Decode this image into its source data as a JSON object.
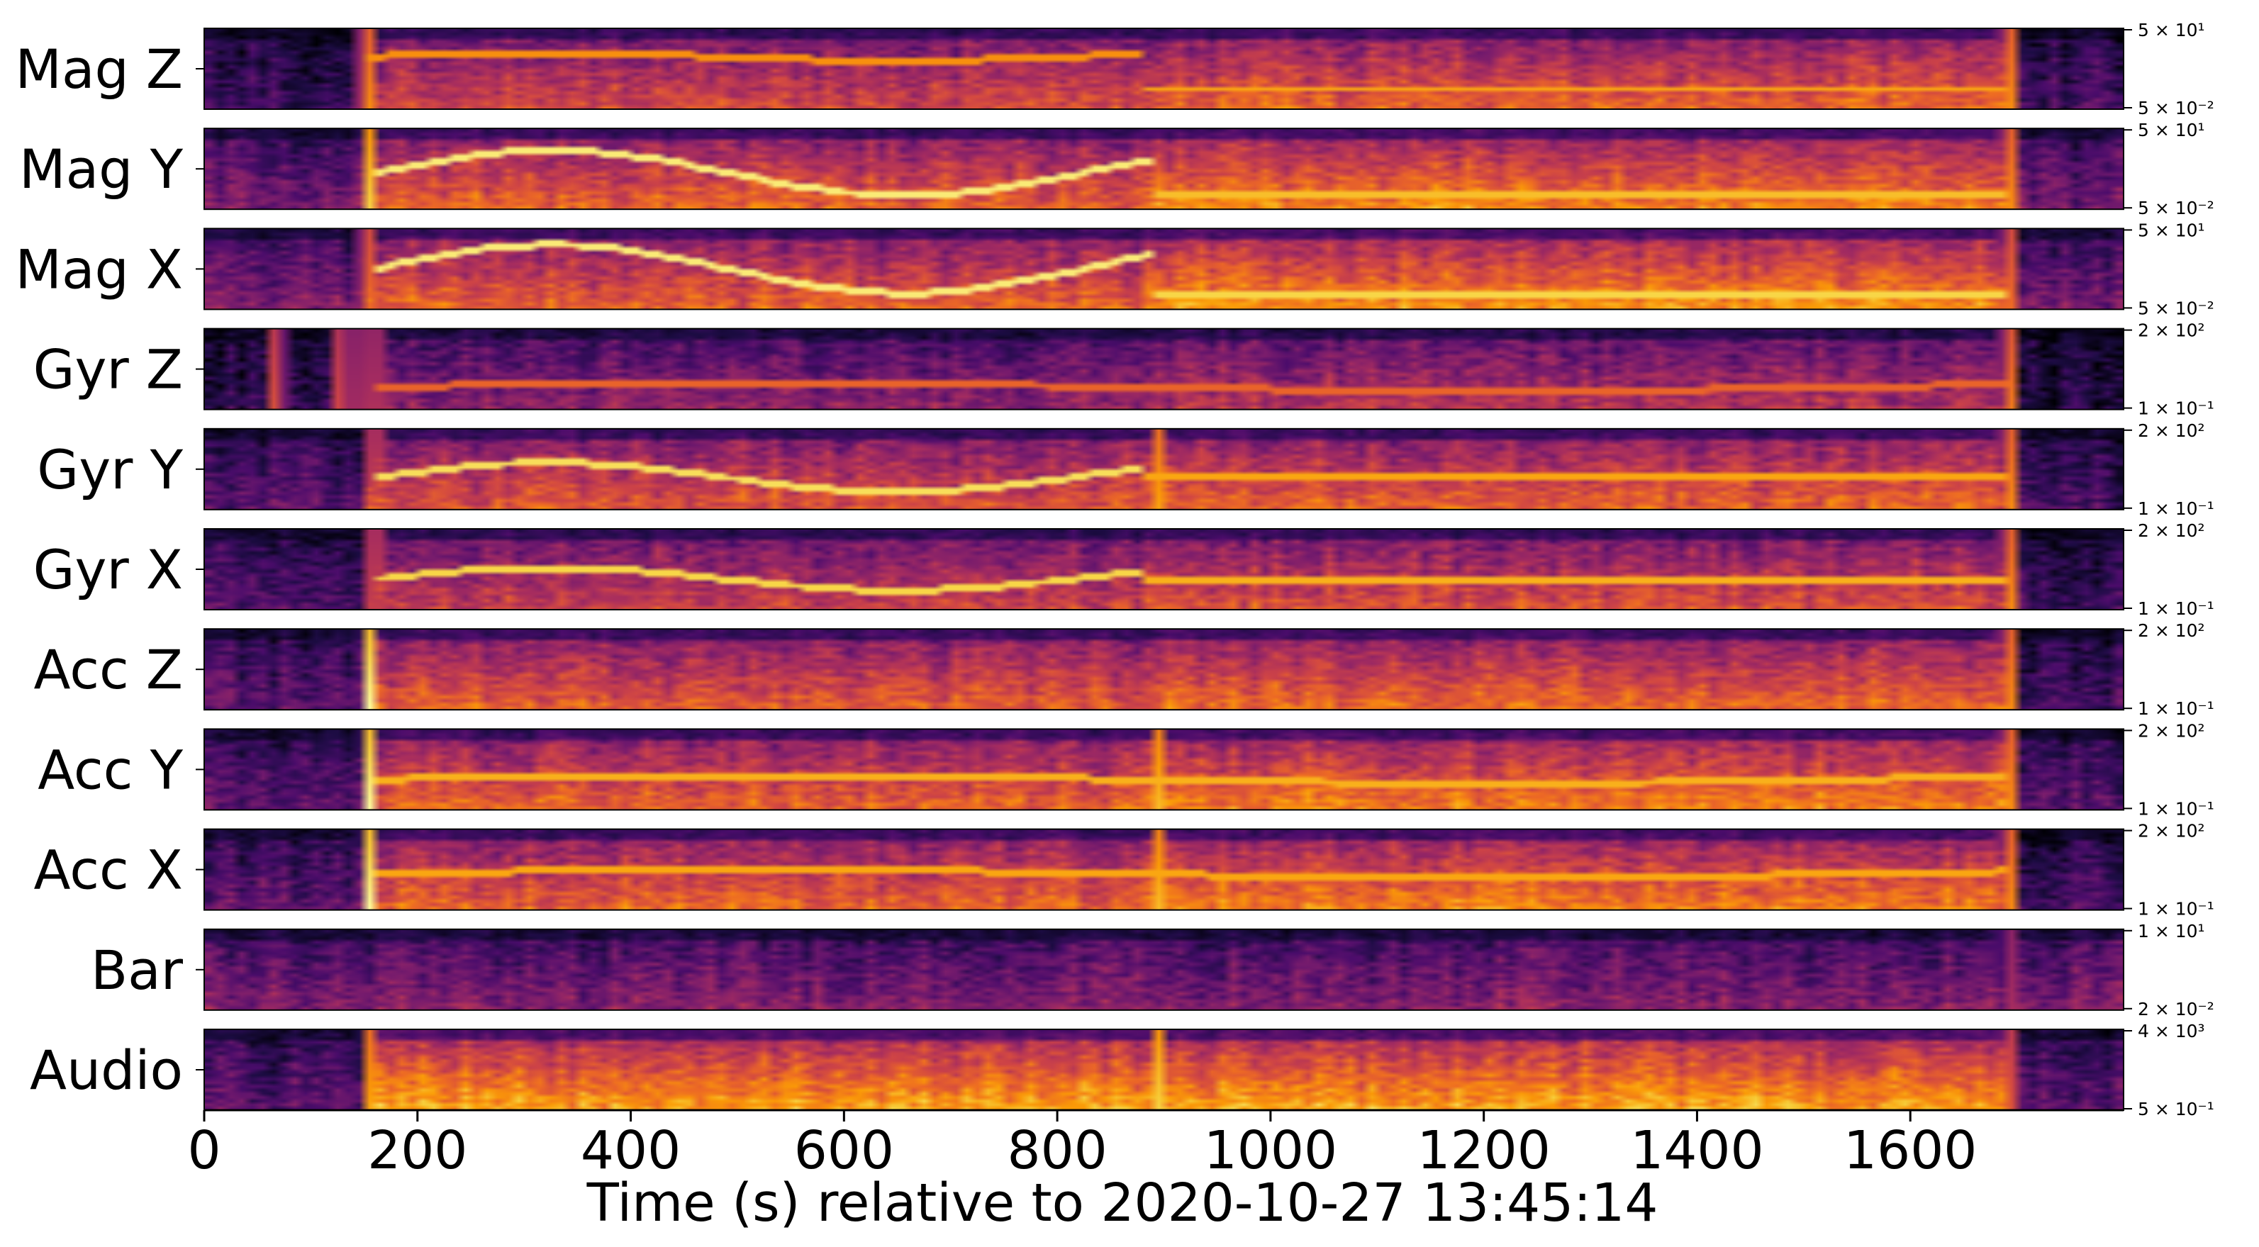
{
  "chart_data": {
    "type": "heatmap",
    "title": "",
    "xlabel": "Time (s) relative to 2020-10-27 13:45:14",
    "xlim": [
      0,
      1800
    ],
    "xticks": [
      0,
      200,
      400,
      600,
      800,
      1000,
      1200,
      1400,
      1600
    ],
    "xtick_labels": [
      "0",
      "200",
      "400",
      "600",
      "800",
      "1000",
      "1200",
      "1400",
      "1600"
    ],
    "colormap": [
      "#000004",
      "#1c0c43",
      "#4a0c6b",
      "#781c6d",
      "#a52c60",
      "#cf4446",
      "#ed6925",
      "#fb9b06",
      "#f7d13d",
      "#fcffa4"
    ],
    "yscale": "log",
    "panels": [
      {
        "label": "Mag Z",
        "ytick_top": "5 × 10¹",
        "ytick_bottom": "5 × 10⁻²",
        "ylim": [
          0.05,
          50
        ],
        "events": [
          {
            "t": 152,
            "strength": 1.0
          },
          {
            "t": 1692,
            "strength": 1.0
          }
        ],
        "bands": [
          {
            "t": [
              0,
              150
            ],
            "level": 0.18
          },
          {
            "t": [
              150,
              880
            ],
            "level": 0.52
          },
          {
            "t": [
              880,
              1695
            ],
            "level": 0.6
          },
          {
            "t": [
              1695,
              1800
            ],
            "level": 0.2
          }
        ],
        "lines": [
          {
            "y": 0.35,
            "amp": 0.05,
            "t": [
              150,
              880
            ],
            "level": 0.75
          },
          {
            "y": 0.75,
            "amp": 0.0,
            "t": [
              880,
              1690
            ],
            "level": 0.8
          }
        ]
      },
      {
        "label": "Mag Y",
        "ytick_top": "5 × 10¹",
        "ytick_bottom": "5 × 10⁻²",
        "ylim": [
          0.05,
          50
        ],
        "events": [
          {
            "t": 155,
            "strength": 0.9
          },
          {
            "t": 1692,
            "strength": 1.0
          }
        ],
        "bands": [
          {
            "t": [
              0,
              150
            ],
            "level": 0.32
          },
          {
            "t": [
              150,
              880
            ],
            "level": 0.6
          },
          {
            "t": [
              880,
              1695
            ],
            "level": 0.68
          },
          {
            "t": [
              1695,
              1800
            ],
            "level": 0.3
          }
        ],
        "lines": [
          {
            "y": 0.55,
            "amp": 0.28,
            "t": [
              160,
              890
            ],
            "level": 0.95
          },
          {
            "y": 0.8,
            "amp": 0.0,
            "t": [
              890,
              1690
            ],
            "level": 0.85
          }
        ]
      },
      {
        "label": "Mag X",
        "ytick_top": "5 × 10¹",
        "ytick_bottom": "5 × 10⁻²",
        "ylim": [
          0.05,
          50
        ],
        "events": [
          {
            "t": 152,
            "strength": 0.9
          },
          {
            "t": 1692,
            "strength": 0.9
          }
        ],
        "bands": [
          {
            "t": [
              0,
              150
            ],
            "level": 0.32
          },
          {
            "t": [
              150,
              880
            ],
            "level": 0.6
          },
          {
            "t": [
              880,
              1695
            ],
            "level": 0.7
          },
          {
            "t": [
              1695,
              1800
            ],
            "level": 0.3
          }
        ],
        "lines": [
          {
            "y": 0.5,
            "amp": 0.3,
            "t": [
              160,
              890
            ],
            "level": 0.95
          },
          {
            "y": 0.82,
            "amp": 0.0,
            "t": [
              890,
              1690
            ],
            "level": 0.9
          }
        ]
      },
      {
        "label": "Gyr Z",
        "ytick_top": "2 × 10²",
        "ytick_bottom": "1 × 10⁻¹",
        "ylim": [
          0.1,
          200
        ],
        "events": [
          {
            "t": 68,
            "strength": 0.8
          },
          {
            "t": 128,
            "strength": 0.75
          },
          {
            "t": 140,
            "strength": 0.75
          },
          {
            "t": 160,
            "strength": 0.8
          },
          {
            "t": 1692,
            "strength": 0.95
          }
        ],
        "bands": [
          {
            "t": [
              0,
              150
            ],
            "level": 0.14
          },
          {
            "t": [
              150,
              880
            ],
            "level": 0.36
          },
          {
            "t": [
              880,
              1695
            ],
            "level": 0.44
          },
          {
            "t": [
              1695,
              1800
            ],
            "level": 0.1
          }
        ],
        "lines": [
          {
            "y": 0.72,
            "amp": 0.05,
            "t": [
              160,
              1690
            ],
            "level": 0.65
          }
        ]
      },
      {
        "label": "Gyr Y",
        "ytick_top": "2 × 10²",
        "ytick_bottom": "1 × 10⁻¹",
        "ylim": [
          0.1,
          200
        ],
        "events": [
          {
            "t": 160,
            "strength": 0.9
          },
          {
            "t": 895,
            "strength": 0.8
          },
          {
            "t": 1692,
            "strength": 1.0
          }
        ],
        "bands": [
          {
            "t": [
              0,
              150
            ],
            "level": 0.25
          },
          {
            "t": [
              150,
              880
            ],
            "level": 0.56
          },
          {
            "t": [
              880,
              1695
            ],
            "level": 0.6
          },
          {
            "t": [
              1695,
              1800
            ],
            "level": 0.2
          }
        ],
        "lines": [
          {
            "y": 0.6,
            "amp": 0.18,
            "t": [
              160,
              880
            ],
            "level": 0.92
          },
          {
            "y": 0.6,
            "amp": 0.0,
            "t": [
              880,
              1690
            ],
            "level": 0.8
          }
        ]
      },
      {
        "label": "Gyr X",
        "ytick_top": "2 × 10²",
        "ytick_bottom": "1 × 10⁻¹",
        "ylim": [
          0.1,
          200
        ],
        "events": [
          {
            "t": 160,
            "strength": 0.9
          },
          {
            "t": 1692,
            "strength": 1.0
          }
        ],
        "bands": [
          {
            "t": [
              0,
              150
            ],
            "level": 0.22
          },
          {
            "t": [
              150,
              880
            ],
            "level": 0.5
          },
          {
            "t": [
              880,
              1695
            ],
            "level": 0.55
          },
          {
            "t": [
              1695,
              1800
            ],
            "level": 0.18
          }
        ],
        "lines": [
          {
            "y": 0.62,
            "amp": 0.14,
            "t": [
              160,
              880
            ],
            "level": 0.9
          },
          {
            "y": 0.64,
            "amp": 0.0,
            "t": [
              880,
              1690
            ],
            "level": 0.82
          }
        ]
      },
      {
        "label": "Acc Z",
        "ytick_top": "2 × 10²",
        "ytick_bottom": "1 × 10⁻¹",
        "ylim": [
          0.1,
          200
        ],
        "events": [
          {
            "t": 155,
            "strength": 1.0
          },
          {
            "t": 1692,
            "strength": 1.0
          }
        ],
        "bands": [
          {
            "t": [
              0,
              150
            ],
            "level": 0.24
          },
          {
            "t": [
              150,
              880
            ],
            "level": 0.58
          },
          {
            "t": [
              880,
              1695
            ],
            "level": 0.62
          },
          {
            "t": [
              1695,
              1800
            ],
            "level": 0.2
          }
        ],
        "lines": []
      },
      {
        "label": "Acc Y",
        "ytick_top": "2 × 10²",
        "ytick_bottom": "1 × 10⁻¹",
        "ylim": [
          0.1,
          200
        ],
        "events": [
          {
            "t": 155,
            "strength": 1.0
          },
          {
            "t": 895,
            "strength": 0.85
          },
          {
            "t": 1692,
            "strength": 1.0
          }
        ],
        "bands": [
          {
            "t": [
              0,
              150
            ],
            "level": 0.26
          },
          {
            "t": [
              150,
              880
            ],
            "level": 0.6
          },
          {
            "t": [
              880,
              1695
            ],
            "level": 0.66
          },
          {
            "t": [
              1695,
              1800
            ],
            "level": 0.22
          }
        ],
        "lines": [
          {
            "y": 0.62,
            "amp": 0.05,
            "t": [
              160,
              1690
            ],
            "level": 0.82
          }
        ]
      },
      {
        "label": "Acc X",
        "ytick_top": "2 × 10²",
        "ytick_bottom": "1 × 10⁻¹",
        "ylim": [
          0.1,
          200
        ],
        "events": [
          {
            "t": 155,
            "strength": 1.0
          },
          {
            "t": 895,
            "strength": 0.85
          },
          {
            "t": 1692,
            "strength": 1.0
          }
        ],
        "bands": [
          {
            "t": [
              0,
              150
            ],
            "level": 0.26
          },
          {
            "t": [
              150,
              880
            ],
            "level": 0.6
          },
          {
            "t": [
              880,
              1695
            ],
            "level": 0.66
          },
          {
            "t": [
              1695,
              1800
            ],
            "level": 0.22
          }
        ],
        "lines": [
          {
            "y": 0.55,
            "amp": 0.05,
            "t": [
              160,
              1690
            ],
            "level": 0.8
          }
        ]
      },
      {
        "label": "Bar",
        "ytick_top": "1 × 10¹",
        "ytick_bottom": "2 × 10⁻²",
        "ylim": [
          0.02,
          10
        ],
        "events": [
          {
            "t": 1692,
            "strength": 0.6
          }
        ],
        "bands": [
          {
            "t": [
              0,
              1800
            ],
            "level": 0.34
          }
        ],
        "lines": []
      },
      {
        "label": "Audio",
        "ytick_top": "4 × 10³",
        "ytick_bottom": "5 × 10⁻¹",
        "ylim": [
          0.5,
          4000
        ],
        "events": [
          {
            "t": 155,
            "strength": 0.8
          },
          {
            "t": 895,
            "strength": 0.9
          },
          {
            "t": 1692,
            "strength": 0.8
          }
        ],
        "bands": [
          {
            "t": [
              0,
              150
            ],
            "level": 0.25
          },
          {
            "t": [
              150,
              1695
            ],
            "level": 0.74
          },
          {
            "t": [
              1695,
              1800
            ],
            "level": 0.25
          }
        ],
        "lines": []
      }
    ]
  }
}
